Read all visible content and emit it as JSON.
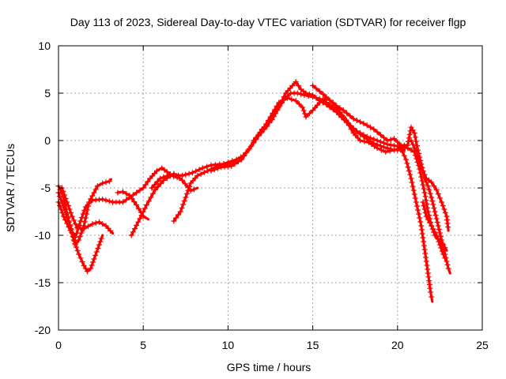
{
  "chart_data": {
    "type": "scatter",
    "title": "Day 113 of 2023, Sidereal Day-to-day VTEC variation (SDTVAR) for receiver flgp",
    "xlabel": "GPS time / hours",
    "ylabel": "SDTVAR / TECUs",
    "xlim": [
      0,
      25
    ],
    "ylim": [
      -20,
      10
    ],
    "xticks": [
      0,
      5,
      10,
      15,
      20,
      25
    ],
    "yticks": [
      -20,
      -15,
      -10,
      -5,
      0,
      5,
      10
    ],
    "grid": true,
    "marker": "+",
    "color": "#ff0000",
    "series": [
      {
        "name": "trace-1",
        "points": [
          [
            0.0,
            -4.8
          ],
          [
            0.3,
            -6.0
          ],
          [
            0.6,
            -8.5
          ],
          [
            0.9,
            -10.5
          ],
          [
            1.2,
            -12.0
          ],
          [
            1.5,
            -13.2
          ],
          [
            1.7,
            -13.8
          ],
          [
            1.9,
            -13.5
          ],
          [
            2.1,
            -12.5
          ],
          [
            2.4,
            -11.0
          ],
          [
            2.6,
            -10.0
          ]
        ]
      },
      {
        "name": "trace-2",
        "points": [
          [
            0.0,
            -5.5
          ],
          [
            0.3,
            -7.0
          ],
          [
            0.7,
            -9.0
          ],
          [
            1.0,
            -11.0
          ],
          [
            1.2,
            -10.5
          ],
          [
            1.5,
            -9.0
          ],
          [
            1.8,
            -6.5
          ],
          [
            2.1,
            -5.5
          ],
          [
            2.3,
            -4.8
          ],
          [
            2.6,
            -4.5
          ],
          [
            3.0,
            -4.3
          ],
          [
            3.1,
            -4.1
          ]
        ]
      },
      {
        "name": "trace-3",
        "points": [
          [
            0.2,
            -5.0
          ],
          [
            0.5,
            -6.5
          ],
          [
            0.8,
            -8.0
          ],
          [
            1.1,
            -9.2
          ],
          [
            1.5,
            -9.3
          ],
          [
            2.0,
            -8.8
          ],
          [
            2.4,
            -8.6
          ],
          [
            2.8,
            -9.0
          ],
          [
            3.2,
            -9.8
          ]
        ]
      },
      {
        "name": "trace-4",
        "points": [
          [
            0.0,
            -6.5
          ],
          [
            0.3,
            -8.0
          ],
          [
            0.7,
            -9.5
          ],
          [
            1.0,
            -10.2
          ],
          [
            1.3,
            -8.5
          ],
          [
            1.6,
            -7.0
          ],
          [
            2.0,
            -6.3
          ],
          [
            2.6,
            -6.2
          ],
          [
            3.2,
            -6.5
          ],
          [
            3.8,
            -6.5
          ],
          [
            4.2,
            -6.0
          ],
          [
            4.6,
            -5.5
          ],
          [
            5.0,
            -5.0
          ],
          [
            5.4,
            -4.0
          ],
          [
            5.8,
            -3.2
          ],
          [
            6.1,
            -2.9
          ],
          [
            6.4,
            -3.3
          ],
          [
            6.8,
            -3.8
          ],
          [
            7.2,
            -4.0
          ]
        ]
      },
      {
        "name": "trace-5",
        "points": [
          [
            3.5,
            -5.5
          ],
          [
            3.8,
            -5.4
          ],
          [
            4.2,
            -5.8
          ],
          [
            4.6,
            -6.8
          ],
          [
            5.0,
            -8.0
          ],
          [
            5.3,
            -8.3
          ]
        ]
      },
      {
        "name": "trace-6",
        "points": [
          [
            4.3,
            -10.0
          ],
          [
            4.7,
            -8.6
          ],
          [
            5.2,
            -6.8
          ],
          [
            5.7,
            -5.2
          ],
          [
            6.2,
            -4.2
          ],
          [
            6.8,
            -3.5
          ],
          [
            7.3,
            -4.2
          ],
          [
            7.8,
            -5.3
          ],
          [
            8.2,
            -5.0
          ]
        ]
      },
      {
        "name": "trace-7",
        "points": [
          [
            6.8,
            -8.5
          ],
          [
            7.2,
            -7.5
          ],
          [
            7.5,
            -6.0
          ],
          [
            7.8,
            -4.5
          ],
          [
            8.2,
            -3.7
          ],
          [
            8.8,
            -3.2
          ],
          [
            9.5,
            -2.6
          ],
          [
            10.0,
            -2.3
          ],
          [
            10.5,
            -2.0
          ],
          [
            11.0,
            -1.5
          ]
        ]
      },
      {
        "name": "trace-8",
        "points": [
          [
            5.5,
            -5.0
          ],
          [
            6.0,
            -4.0
          ],
          [
            6.6,
            -3.6
          ],
          [
            7.3,
            -3.7
          ],
          [
            7.9,
            -3.4
          ],
          [
            8.5,
            -2.9
          ],
          [
            9.0,
            -2.6
          ],
          [
            9.5,
            -2.5
          ],
          [
            10.0,
            -2.5
          ],
          [
            10.6,
            -2.2
          ],
          [
            11.2,
            -1.0
          ],
          [
            11.8,
            0.5
          ],
          [
            12.3,
            1.5
          ],
          [
            12.8,
            3.0
          ],
          [
            13.3,
            4.3
          ],
          [
            13.7,
            5.0
          ],
          [
            14.1,
            5.0
          ],
          [
            14.5,
            4.8
          ],
          [
            15.0,
            4.6
          ],
          [
            15.6,
            4.3
          ],
          [
            16.2,
            3.5
          ],
          [
            16.8,
            2.5
          ],
          [
            17.4,
            1.2
          ],
          [
            18.0,
            0.4
          ],
          [
            18.6,
            -0.3
          ],
          [
            19.2,
            -0.7
          ],
          [
            19.8,
            -1.0
          ],
          [
            20.4,
            -1.0
          ]
        ]
      },
      {
        "name": "trace-9",
        "points": [
          [
            9.0,
            -3.2
          ],
          [
            9.6,
            -2.8
          ],
          [
            10.2,
            -2.7
          ],
          [
            10.8,
            -2.0
          ],
          [
            11.4,
            -0.5
          ],
          [
            12.0,
            1.2
          ],
          [
            12.6,
            2.2
          ],
          [
            13.0,
            3.5
          ],
          [
            13.4,
            5.0
          ],
          [
            13.8,
            5.8
          ],
          [
            14.0,
            6.2
          ],
          [
            14.3,
            5.4
          ],
          [
            14.6,
            5.0
          ],
          [
            15.0,
            4.8
          ],
          [
            15.4,
            4.2
          ],
          [
            15.8,
            3.8
          ],
          [
            16.4,
            3.0
          ],
          [
            17.0,
            1.9
          ],
          [
            17.6,
            1.0
          ],
          [
            18.2,
            0.4
          ],
          [
            18.8,
            0.0
          ],
          [
            19.4,
            -0.4
          ],
          [
            20.0,
            -0.6
          ],
          [
            20.6,
            -0.8
          ],
          [
            21.0,
            -1.2
          ],
          [
            21.3,
            -3.0
          ],
          [
            21.6,
            -5.5
          ],
          [
            21.8,
            -7.5
          ],
          [
            22.0,
            -9.0
          ],
          [
            22.3,
            -10.0
          ],
          [
            22.5,
            -11.0
          ],
          [
            22.7,
            -12.0
          ],
          [
            22.9,
            -12.8
          ]
        ]
      },
      {
        "name": "trace-10",
        "points": [
          [
            11.5,
            0.0
          ],
          [
            12.0,
            1.0
          ],
          [
            12.5,
            2.5
          ],
          [
            13.0,
            4.0
          ],
          [
            13.5,
            4.5
          ],
          [
            14.0,
            4.2
          ],
          [
            14.4,
            3.5
          ],
          [
            14.6,
            2.5
          ],
          [
            15.0,
            3.2
          ],
          [
            15.4,
            4.0
          ],
          [
            15.8,
            4.5
          ],
          [
            16.2,
            4.0
          ],
          [
            16.6,
            3.0
          ],
          [
            17.0,
            2.0
          ],
          [
            17.4,
            0.8
          ],
          [
            17.8,
            0.0
          ],
          [
            18.3,
            -0.2
          ],
          [
            18.8,
            -0.8
          ],
          [
            19.3,
            -1.2
          ],
          [
            19.8,
            -1.0
          ],
          [
            20.2,
            -0.8
          ],
          [
            20.5,
            -2.0
          ],
          [
            20.8,
            -4.0
          ],
          [
            21.1,
            -6.5
          ],
          [
            21.4,
            -9.0
          ],
          [
            21.6,
            -11.5
          ],
          [
            21.8,
            -14.0
          ],
          [
            21.95,
            -16.0
          ],
          [
            22.05,
            -17.0
          ]
        ]
      },
      {
        "name": "trace-11",
        "points": [
          [
            15.0,
            5.8
          ],
          [
            15.4,
            5.2
          ],
          [
            15.8,
            4.6
          ],
          [
            16.2,
            3.9
          ],
          [
            16.8,
            3.2
          ],
          [
            17.4,
            2.3
          ],
          [
            18.0,
            1.8
          ],
          [
            18.6,
            1.2
          ],
          [
            19.0,
            0.6
          ],
          [
            19.4,
            0.0
          ],
          [
            19.8,
            0.2
          ],
          [
            20.2,
            -0.5
          ],
          [
            20.6,
            -0.5
          ],
          [
            20.8,
            1.4
          ],
          [
            21.0,
            0.8
          ],
          [
            21.2,
            -1.0
          ],
          [
            21.4,
            -2.5
          ],
          [
            21.6,
            -4.0
          ],
          [
            21.8,
            -4.8
          ],
          [
            22.0,
            -6.0
          ],
          [
            22.2,
            -7.5
          ],
          [
            22.4,
            -9.0
          ],
          [
            22.6,
            -10.5
          ],
          [
            22.8,
            -12.0
          ],
          [
            23.0,
            -13.5
          ],
          [
            23.1,
            -14.0
          ]
        ]
      },
      {
        "name": "trace-12",
        "points": [
          [
            20.8,
            0.0
          ],
          [
            21.1,
            -1.2
          ],
          [
            21.4,
            -2.8
          ],
          [
            21.7,
            -4.0
          ],
          [
            22.0,
            -4.4
          ],
          [
            22.3,
            -5.2
          ],
          [
            22.6,
            -6.5
          ],
          [
            22.9,
            -8.0
          ],
          [
            23.0,
            -9.5
          ]
        ]
      },
      {
        "name": "trace-13",
        "points": [
          [
            21.5,
            -6.5
          ],
          [
            21.7,
            -8.0
          ],
          [
            22.0,
            -9.0
          ],
          [
            22.2,
            -10.0
          ],
          [
            22.4,
            -10.4
          ],
          [
            22.7,
            -11.0
          ],
          [
            22.9,
            -11.6
          ]
        ]
      }
    ]
  }
}
